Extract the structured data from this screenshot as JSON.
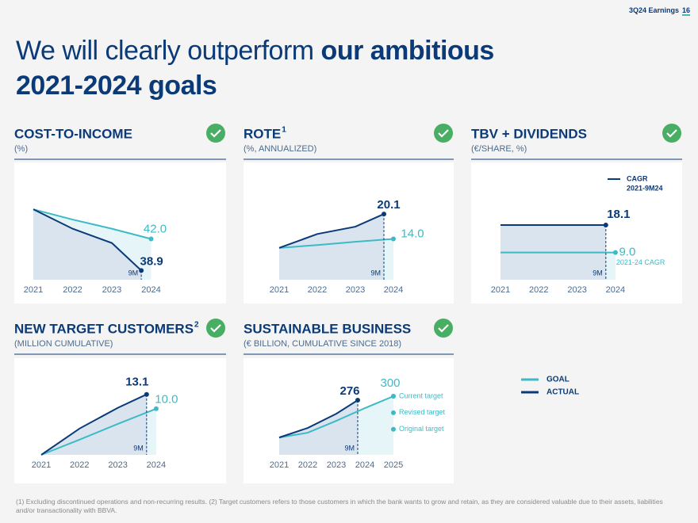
{
  "header": {
    "label": "3Q24 Earnings",
    "page": "16"
  },
  "title": {
    "regular": "We will clearly outperform",
    "bold_1": "our ambitious",
    "bold_2": "2021-2024 goals"
  },
  "chart_data": [
    {
      "type": "line",
      "title": "COST-TO-INCOME",
      "subtitle": "(%)",
      "annotation": "9M",
      "categories": [
        "2021",
        "2022",
        "2023",
        "2024"
      ],
      "ylim": [
        38,
        46
      ],
      "series": [
        {
          "name": "GOAL",
          "color": "#3dbac6",
          "values": [
            44.9,
            43.9,
            43.0,
            42.0
          ],
          "value_labels": [
            null,
            null,
            null,
            "42.0"
          ]
        },
        {
          "name": "ACTUAL",
          "color": "#0b3a78",
          "values": [
            44.9,
            43.0,
            41.6,
            38.9
          ]
        }
      ]
    },
    {
      "type": "line",
      "title": "ROTE",
      "title_note": "1",
      "subtitle": "(%, ANNUALIZED)",
      "annotation": "9M",
      "categories": [
        "2021",
        "2022",
        "2023",
        "2024"
      ],
      "ylim": [
        4,
        24
      ],
      "series": [
        {
          "name": "GOAL",
          "color": "#3dbac6",
          "values": [
            11.8,
            12.5,
            13.3,
            14.0
          ],
          "value_labels": [
            null,
            null,
            null,
            "14.0"
          ]
        },
        {
          "name": "ACTUAL",
          "color": "#0b3a78",
          "values": [
            11.8,
            15.2,
            17.0,
            20.1
          ]
        }
      ]
    },
    {
      "type": "line",
      "title": "TBV + DIVIDENDS",
      "subtitle": "(€/SHARE, %)",
      "annotation": "9M",
      "legend_label": [
        "CAGR",
        "2021-9M24"
      ],
      "goal_label": "2021-24 CAGR",
      "categories": [
        "2021",
        "2022",
        "2023",
        "2024"
      ],
      "ylim": [
        0,
        27
      ],
      "series": [
        {
          "name": "GOAL",
          "color": "#3dbac6",
          "values": [
            9,
            9,
            9,
            9
          ],
          "value_labels": [
            null,
            null,
            null,
            "9.0"
          ]
        },
        {
          "name": "ACTUAL",
          "color": "#0b3a78",
          "values": [
            18.1,
            18.1,
            18.1,
            18.1
          ]
        }
      ]
    },
    {
      "type": "line",
      "title": "NEW TARGET CUSTOMERS",
      "title_note": "2",
      "subtitle": "(MILLION CUMULATIVE)",
      "annotation": "9M",
      "categories": [
        "2021",
        "2022",
        "2023",
        "2024"
      ],
      "ylim": [
        0,
        17
      ],
      "series": [
        {
          "name": "GOAL",
          "color": "#3dbac6",
          "values": [
            0,
            3.3,
            6.7,
            10.0
          ],
          "value_labels": [
            null,
            null,
            null,
            "10.0"
          ]
        },
        {
          "name": "ACTUAL",
          "color": "#0b3a78",
          "values": [
            0,
            5.7,
            10.2,
            13.1
          ]
        }
      ]
    },
    {
      "type": "line",
      "title": "SUSTAINABLE BUSINESS",
      "subtitle": "(€ BILLION, CUMULATIVE SINCE 2018)",
      "annotation": "9M",
      "categories": [
        "2021",
        "2022",
        "2023",
        "2024",
        "2025"
      ],
      "ylim": [
        -55,
        420
      ],
      "targets": [
        {
          "label": "Current target",
          "value": 300
        },
        {
          "label": "Revised target",
          "value": 200
        },
        {
          "label": "Original target",
          "value": 100
        }
      ],
      "series": [
        {
          "name": "GOAL",
          "color": "#3dbac6",
          "values": [
            50,
            79,
            151,
            228,
            300
          ]
        },
        {
          "name": "ACTUAL",
          "color": "#0b3a78",
          "values": [
            50,
            108,
            194,
            276,
            null
          ]
        }
      ]
    }
  ],
  "footnote": "(1) Excluding discontinued operations and non-recurring results. (2) Target customers refers to those customers in which the bank wants to grow and retain, as they are considered valuable due to their assets, liabilities and/or transactionality with BBVA."
}
